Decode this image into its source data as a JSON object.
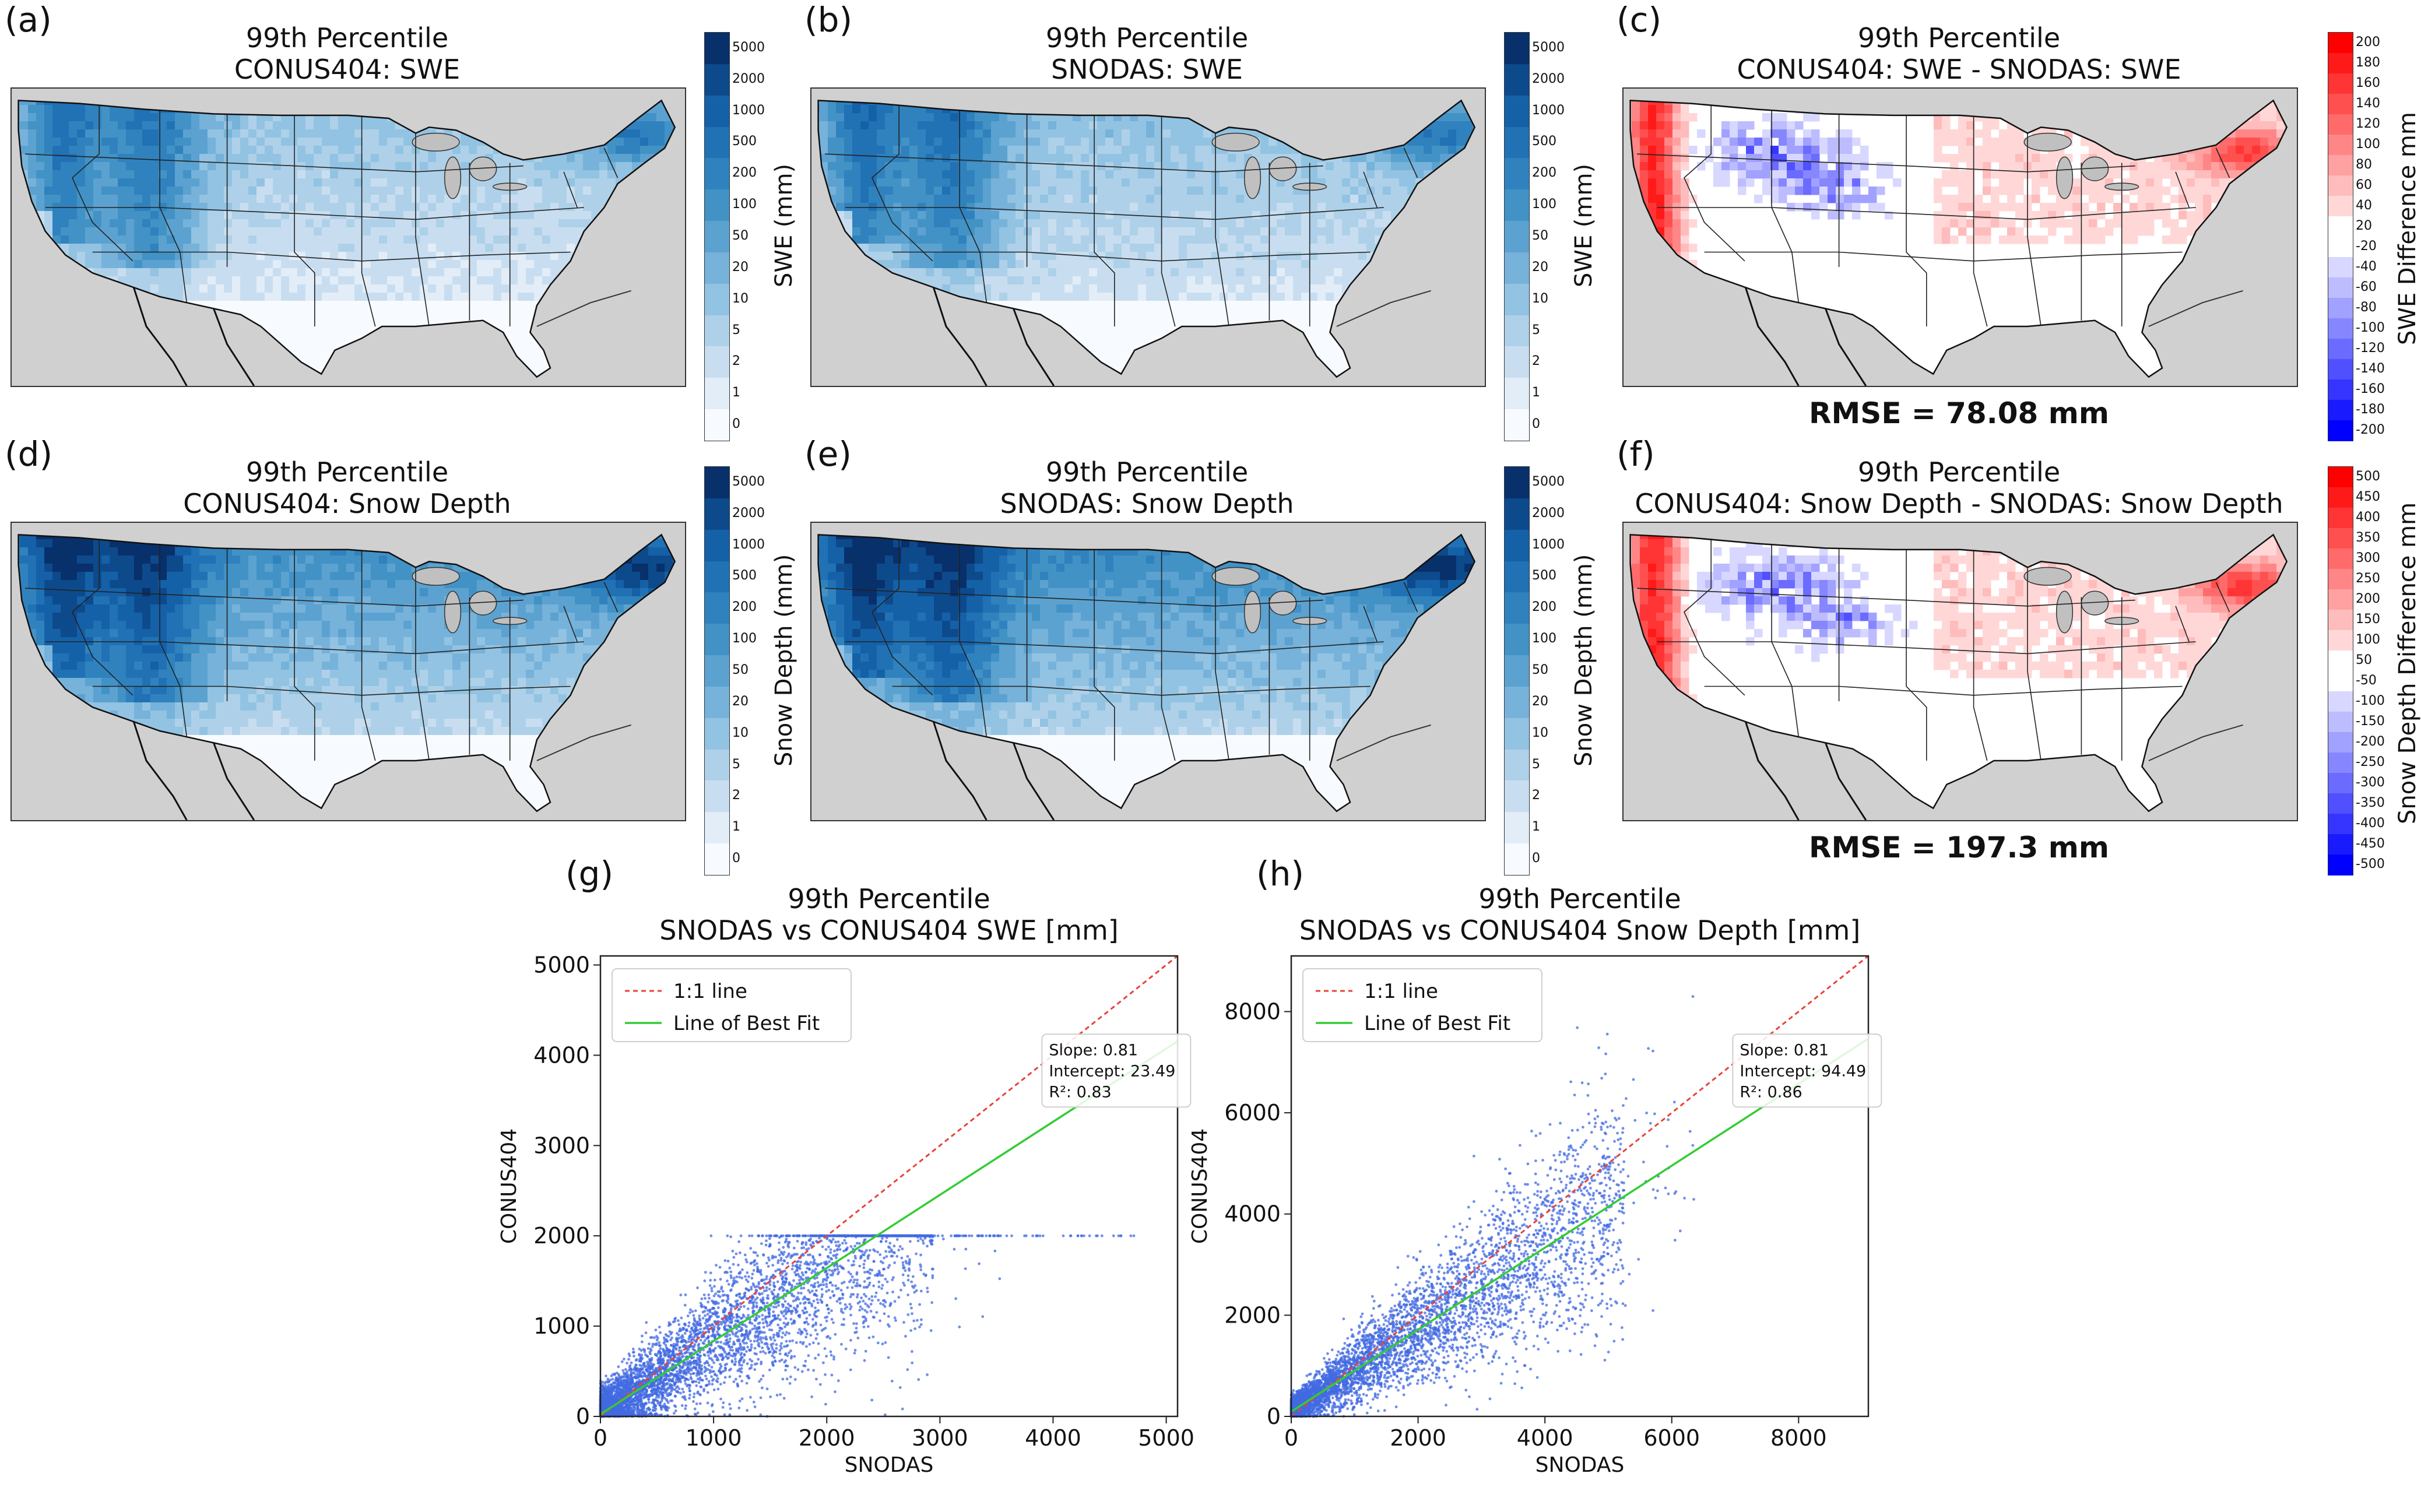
{
  "panels": [
    {
      "id": "a",
      "letter": "(a)",
      "title1": "99th Percentile",
      "title2": "CONUS404: SWE",
      "kind": "abs",
      "variant": "swe_c"
    },
    {
      "id": "b",
      "letter": "(b)",
      "title1": "99th Percentile",
      "title2": "SNODAS: SWE",
      "kind": "abs",
      "variant": "swe_s"
    },
    {
      "id": "c",
      "letter": "(c)",
      "title1": "99th Percentile",
      "title2": "CONUS404: SWE - SNODAS: SWE",
      "kind": "diff",
      "rmse": "RMSE = 78.08 mm"
    },
    {
      "id": "d",
      "letter": "(d)",
      "title1": "99th Percentile",
      "title2": "CONUS404: Snow Depth",
      "kind": "abs",
      "variant": "sd_c"
    },
    {
      "id": "e",
      "letter": "(e)",
      "title1": "99th Percentile",
      "title2": "SNODAS: Snow Depth",
      "kind": "abs",
      "variant": "sd_s"
    },
    {
      "id": "f",
      "letter": "(f)",
      "title1": "99th Percentile",
      "title2": "CONUS404: Snow Depth - SNODAS: Snow Depth",
      "kind": "diff",
      "rmse": "RMSE = 197.3 mm"
    }
  ],
  "colorbars": {
    "abs_ticks": [
      "5000",
      "2000",
      "1000",
      "500",
      "200",
      "100",
      "50",
      "20",
      "10",
      "5",
      "2",
      "1",
      "0"
    ],
    "swe_label": "SWE (mm)",
    "sd_label": "Snow Depth (mm)",
    "swe_diff_ticks": [
      "200",
      "180",
      "160",
      "140",
      "120",
      "100",
      "80",
      "60",
      "40",
      "20",
      "-20",
      "-40",
      "-60",
      "-80",
      "-100",
      "-120",
      "-140",
      "-160",
      "-180",
      "-200"
    ],
    "swe_diff_label": "SWE Difference mm",
    "sd_diff_ticks": [
      "500",
      "450",
      "400",
      "350",
      "300",
      "250",
      "200",
      "150",
      "100",
      "50",
      "-50",
      "-100",
      "-150",
      "-200",
      "-250",
      "-300",
      "-350",
      "-400",
      "-450",
      "-500"
    ],
    "sd_diff_label": "Snow Depth Difference mm",
    "abs_colors": [
      "#08306b",
      "#0d4a8c",
      "#1561a8",
      "#2171b5",
      "#3082be",
      "#4292c6",
      "#5ca2d0",
      "#76b2da",
      "#92c3e2",
      "#aed1e9",
      "#c8def0",
      "#e2edf8",
      "#f7fbff"
    ],
    "diff_colors": [
      "#ff0000",
      "#ff1a1a",
      "#ff3535",
      "#ff5050",
      "#ff6b6b",
      "#ff8686",
      "#ffa1a1",
      "#ffbcbc",
      "#ffd7d7",
      "#ffffff",
      "#ffffff",
      "#d7d7ff",
      "#bcbcff",
      "#a1a1ff",
      "#8686ff",
      "#6b6bff",
      "#5050ff",
      "#3535ff",
      "#1a1aff",
      "#0000ff"
    ]
  },
  "chart_data": [
    {
      "type": "scatter",
      "id": "g",
      "letter": "(g)",
      "title": "99th Percentile",
      "subtitle": "SNODAS vs CONUS404 SWE [mm]",
      "xlabel": "SNODAS",
      "ylabel": "CONUS404",
      "xlim": [
        0,
        5100
      ],
      "ylim": [
        0,
        5100
      ],
      "xticks": [
        0,
        1000,
        2000,
        3000,
        4000,
        5000
      ],
      "yticks": [
        0,
        1000,
        2000,
        3000,
        4000,
        5000
      ],
      "legend": [
        "1:1 line",
        "Line of Best Fit"
      ],
      "legend_position": "top-left",
      "fit": {
        "slope": 0.81,
        "intercept": 23.49,
        "r2": 0.83
      },
      "stats": [
        "Slope: 0.81",
        "Intercept: 23.49",
        "R²: 0.83"
      ],
      "cap": 2000,
      "point_color": "#4169e1",
      "identity_color": "#e8423a",
      "fit_color": "#33cc33"
    },
    {
      "type": "scatter",
      "id": "h",
      "letter": "(h)",
      "title": "99th Percentile",
      "subtitle": "SNODAS vs CONUS404 Snow Depth [mm]",
      "xlabel": "SNODAS",
      "ylabel": "CONUS404",
      "xlim": [
        0,
        9100
      ],
      "ylim": [
        0,
        9100
      ],
      "xticks": [
        0,
        2000,
        4000,
        6000,
        8000
      ],
      "yticks": [
        0,
        2000,
        4000,
        6000,
        8000
      ],
      "legend": [
        "1:1 line",
        "Line of Best Fit"
      ],
      "legend_position": "top-left",
      "fit": {
        "slope": 0.81,
        "intercept": 94.49,
        "r2": 0.86
      },
      "stats": [
        "Slope: 0.81",
        "Intercept: 94.49",
        "R²: 0.86"
      ],
      "point_color": "#4169e1",
      "identity_color": "#e8423a",
      "fit_color": "#33cc33"
    }
  ]
}
